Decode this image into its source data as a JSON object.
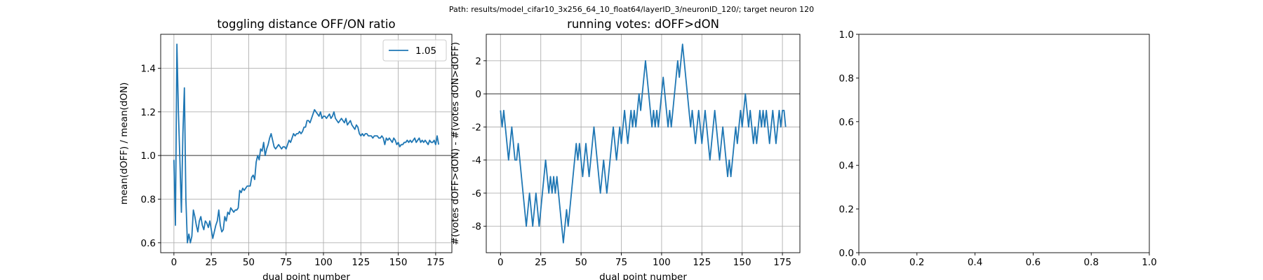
{
  "suptitle": "Path: results/model_cifar10_3x256_64_10_float64/layerID_3/neuronID_120/; target neuron 120",
  "chart_data": [
    {
      "type": "line",
      "title": "toggling distance OFF/ON ratio",
      "xlabel": "dual point number",
      "ylabel": "mean(dOFF) / mean(dON)",
      "xlim": [
        -8.85,
        185.85
      ],
      "ylim": [
        0.5545,
        1.5555
      ],
      "xticks": [
        0,
        25,
        50,
        75,
        100,
        125,
        150,
        175
      ],
      "yticks": [
        0.6,
        0.8,
        {
          "value": 1,
          "label": "1.0"
        },
        1.2,
        1.4
      ],
      "grid": true,
      "legend": "upper right",
      "hline": 1,
      "hline_color": "#808080",
      "x": [
        0,
        1,
        2,
        3,
        4,
        5,
        6,
        7,
        8,
        9,
        10,
        11,
        12,
        13,
        14,
        15,
        16,
        17,
        18,
        19,
        20,
        21,
        22,
        23,
        24,
        25,
        26,
        27,
        28,
        29,
        30,
        31,
        32,
        33,
        34,
        35,
        36,
        37,
        38,
        39,
        40,
        41,
        42,
        43,
        44,
        45,
        46,
        47,
        48,
        49,
        50,
        51,
        52,
        53,
        54,
        55,
        56,
        57,
        58,
        59,
        60,
        61,
        62,
        63,
        64,
        65,
        66,
        67,
        68,
        69,
        70,
        71,
        72,
        73,
        74,
        75,
        76,
        77,
        78,
        79,
        80,
        81,
        82,
        83,
        84,
        85,
        86,
        87,
        88,
        89,
        90,
        91,
        92,
        93,
        94,
        95,
        96,
        97,
        98,
        99,
        100,
        101,
        102,
        103,
        104,
        105,
        106,
        107,
        108,
        109,
        110,
        111,
        112,
        113,
        114,
        115,
        116,
        117,
        118,
        119,
        120,
        121,
        122,
        123,
        124,
        125,
        126,
        127,
        128,
        129,
        130,
        131,
        132,
        133,
        134,
        135,
        136,
        137,
        138,
        139,
        140,
        141,
        142,
        143,
        144,
        145,
        146,
        147,
        148,
        149,
        150,
        151,
        152,
        153,
        154,
        155,
        156,
        157,
        158,
        159,
        160,
        161,
        162,
        163,
        164,
        165,
        166,
        167,
        168,
        169,
        170,
        171,
        172,
        173,
        174,
        175,
        176,
        177
      ],
      "series": [
        {
          "name": "1.05",
          "color": "#1f77b4",
          "values": [
            0.98,
            0.68,
            1.51,
            1.2,
            0.98,
            0.74,
            1.1,
            1.31,
            0.8,
            0.6,
            0.64,
            0.6,
            0.63,
            0.75,
            0.72,
            0.68,
            0.65,
            0.7,
            0.72,
            0.68,
            0.66,
            0.7,
            0.69,
            0.67,
            0.7,
            0.66,
            0.62,
            0.65,
            0.68,
            0.7,
            0.75,
            0.68,
            0.65,
            0.66,
            0.72,
            0.7,
            0.74,
            0.73,
            0.76,
            0.75,
            0.74,
            0.75,
            0.75,
            0.76,
            0.84,
            0.83,
            0.85,
            0.84,
            0.85,
            0.86,
            0.86,
            0.86,
            0.9,
            0.91,
            0.89,
            0.97,
            1.0,
            0.98,
            1.03,
            1.02,
            1.06,
            1.0,
            1.03,
            1.05,
            1.08,
            1.1,
            1.07,
            1.04,
            1.03,
            1.04,
            1.05,
            1.04,
            1.03,
            1.04,
            1.04,
            1.03,
            1.05,
            1.07,
            1.06,
            1.08,
            1.1,
            1.09,
            1.1,
            1.1,
            1.11,
            1.1,
            1.11,
            1.13,
            1.13,
            1.16,
            1.16,
            1.15,
            1.17,
            1.19,
            1.21,
            1.2,
            1.19,
            1.18,
            1.2,
            1.17,
            1.18,
            1.18,
            1.17,
            1.18,
            1.19,
            1.17,
            1.18,
            1.2,
            1.17,
            1.16,
            1.15,
            1.16,
            1.17,
            1.16,
            1.15,
            1.17,
            1.14,
            1.15,
            1.16,
            1.14,
            1.13,
            1.12,
            1.14,
            1.13,
            1.1,
            1.09,
            1.1,
            1.09,
            1.1,
            1.1,
            1.09,
            1.09,
            1.09,
            1.08,
            1.09,
            1.09,
            1.09,
            1.08,
            1.08,
            1.09,
            1.08,
            1.05,
            1.08,
            1.07,
            1.08,
            1.07,
            1.06,
            1.08,
            1.07,
            1.05,
            1.06,
            1.04,
            1.05,
            1.05,
            1.06,
            1.06,
            1.07,
            1.06,
            1.07,
            1.06,
            1.07,
            1.08,
            1.06,
            1.07,
            1.08,
            1.06,
            1.07,
            1.06,
            1.07,
            1.06,
            1.05,
            1.07,
            1.06,
            1.06,
            1.07,
            1.05,
            1.09,
            1.05
          ]
        }
      ]
    },
    {
      "type": "line",
      "title": "running votes: dOFF>dON",
      "xlabel": "dual point number",
      "ylabel": "#(votes dOFF>dON) - #(votes dON>dOFF)",
      "xlim": [
        -8.85,
        185.85
      ],
      "ylim": [
        -9.6,
        3.6
      ],
      "xticks": [
        0,
        25,
        50,
        75,
        100,
        125,
        150,
        175
      ],
      "yticks": [
        -8,
        -6,
        -4,
        -2,
        0,
        2
      ],
      "grid": true,
      "hline": 0,
      "hline_color": "#808080",
      "x": [
        0,
        1,
        2,
        3,
        4,
        5,
        6,
        7,
        8,
        9,
        10,
        11,
        12,
        13,
        14,
        15,
        16,
        17,
        18,
        19,
        20,
        21,
        22,
        23,
        24,
        25,
        26,
        27,
        28,
        29,
        30,
        31,
        32,
        33,
        34,
        35,
        36,
        37,
        38,
        39,
        40,
        41,
        42,
        43,
        44,
        45,
        46,
        47,
        48,
        49,
        50,
        51,
        52,
        53,
        54,
        55,
        56,
        57,
        58,
        59,
        60,
        61,
        62,
        63,
        64,
        65,
        66,
        67,
        68,
        69,
        70,
        71,
        72,
        73,
        74,
        75,
        76,
        77,
        78,
        79,
        80,
        81,
        82,
        83,
        84,
        85,
        86,
        87,
        88,
        89,
        90,
        91,
        92,
        93,
        94,
        95,
        96,
        97,
        98,
        99,
        100,
        101,
        102,
        103,
        104,
        105,
        106,
        107,
        108,
        109,
        110,
        111,
        112,
        113,
        114,
        115,
        116,
        117,
        118,
        119,
        120,
        121,
        122,
        123,
        124,
        125,
        126,
        127,
        128,
        129,
        130,
        131,
        132,
        133,
        134,
        135,
        136,
        137,
        138,
        139,
        140,
        141,
        142,
        143,
        144,
        145,
        146,
        147,
        148,
        149,
        150,
        151,
        152,
        153,
        154,
        155,
        156,
        157,
        158,
        159,
        160,
        161,
        162,
        163,
        164,
        165,
        166,
        167,
        168,
        169,
        170,
        171,
        172,
        173,
        174,
        175,
        176,
        177
      ],
      "series": [
        {
          "color": "#1f77b4",
          "values": [
            -1,
            -2,
            -1,
            -2,
            -3,
            -4,
            -3,
            -2,
            -3,
            -4,
            -4,
            -3,
            -4,
            -5,
            -6,
            -7,
            -8,
            -7,
            -6,
            -7,
            -8,
            -7,
            -6,
            -7,
            -8,
            -7,
            -6,
            -5,
            -4,
            -5,
            -6,
            -5,
            -6,
            -5,
            -6,
            -5,
            -6,
            -7,
            -8,
            -9,
            -8,
            -7,
            -8,
            -7,
            -6,
            -5,
            -4,
            -3,
            -4,
            -3,
            -4,
            -5,
            -4,
            -3,
            -4,
            -5,
            -4,
            -3,
            -2,
            -3,
            -4,
            -5,
            -6,
            -5,
            -4,
            -5,
            -6,
            -5,
            -4,
            -3,
            -2,
            -3,
            -4,
            -3,
            -2,
            -3,
            -2,
            -1,
            -2,
            -3,
            -2,
            -1,
            -2,
            -1,
            -2,
            -1,
            0,
            -1,
            0,
            1,
            2,
            1,
            0,
            -1,
            -2,
            -1,
            -2,
            -1,
            -2,
            -1,
            0,
            1,
            0,
            -1,
            -2,
            -1,
            -2,
            -1,
            0,
            1,
            2,
            1,
            2,
            3,
            2,
            1,
            0,
            -1,
            -2,
            -1,
            -2,
            -3,
            -2,
            -1,
            -2,
            -3,
            -2,
            -1,
            -2,
            -3,
            -4,
            -3,
            -2,
            -1,
            -2,
            -3,
            -4,
            -3,
            -2,
            -3,
            -4,
            -5,
            -4,
            -5,
            -4,
            -3,
            -2,
            -3,
            -2,
            -1,
            -2,
            -1,
            0,
            -1,
            -2,
            -1,
            -2,
            -3,
            -2,
            -3,
            -2,
            -1,
            -2,
            -1,
            -2,
            -1,
            -2,
            -3,
            -2,
            -1,
            -2,
            -3,
            -2,
            -1,
            -2,
            -1,
            -1,
            -2
          ]
        }
      ]
    },
    {
      "type": "empty",
      "xlim": [
        0,
        1
      ],
      "ylim": [
        0,
        1
      ],
      "xticks": [
        {
          "value": 0,
          "label": "0.0"
        },
        0.2,
        0.4,
        0.6,
        0.8,
        {
          "value": 1,
          "label": "1.0"
        }
      ],
      "yticks": [
        {
          "value": 0,
          "label": "0.0"
        },
        0.2,
        0.4,
        0.6,
        0.8,
        {
          "value": 1,
          "label": "1.0"
        }
      ],
      "grid": false
    }
  ]
}
